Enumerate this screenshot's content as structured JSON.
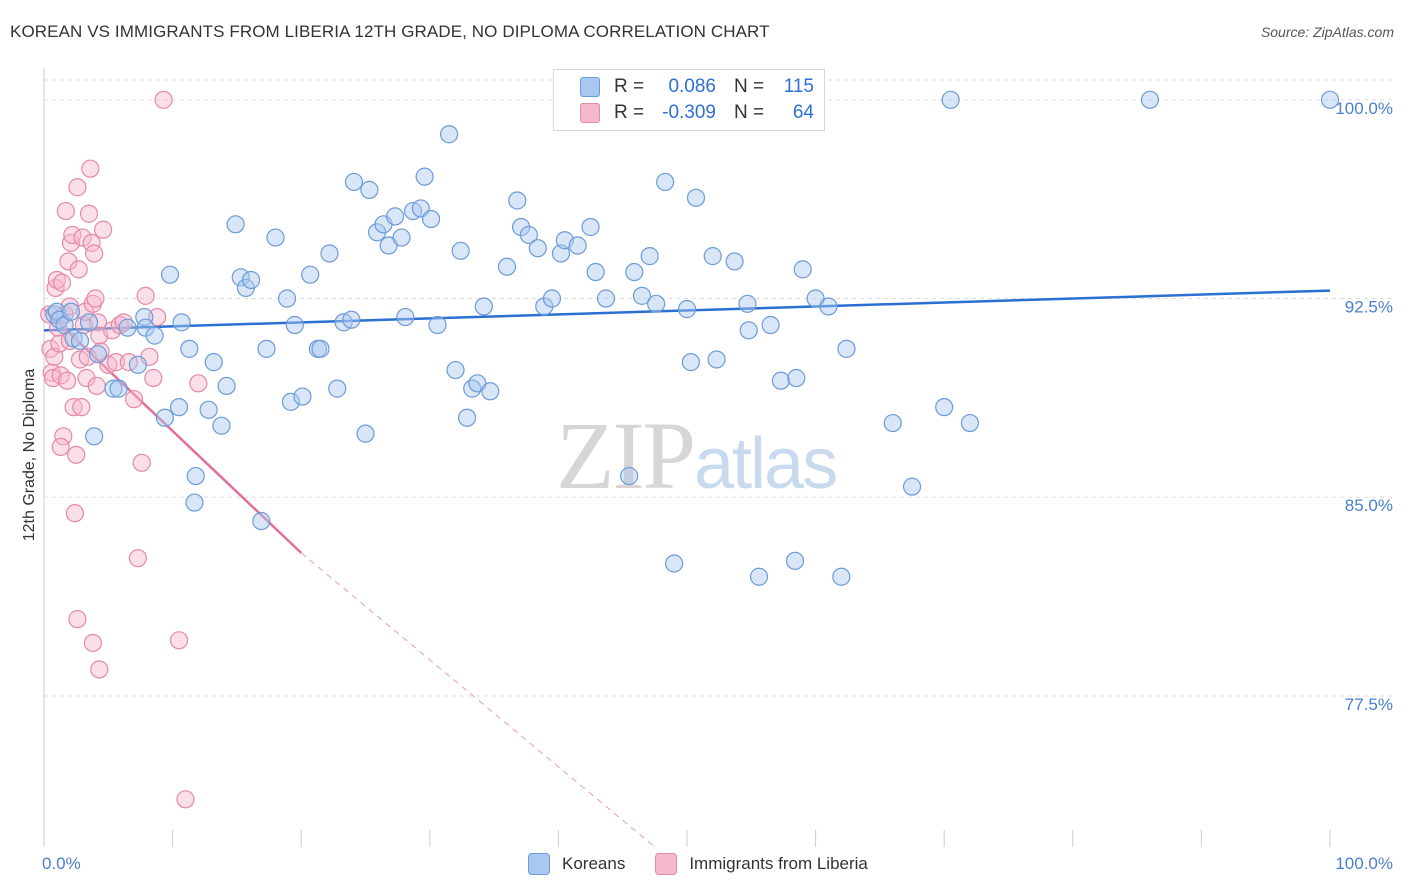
{
  "title": "KOREAN VS IMMIGRANTS FROM LIBERIA 12TH GRADE, NO DIPLOMA CORRELATION CHART",
  "source": "Source: ZipAtlas.com",
  "watermark": {
    "zip": "ZIP",
    "atlas": "atlas"
  },
  "legend": {
    "koreans": {
      "r_label": "R =",
      "r_value": "0.086",
      "n_label": "N =",
      "n_value": "115"
    },
    "liberia": {
      "r_label": "R =",
      "r_value": "-0.309",
      "n_label": "N =",
      "n_value": "64"
    }
  },
  "bottom_legend": {
    "koreans": "Koreans",
    "liberia": "Immigrants from Liberia"
  },
  "colors": {
    "koreans_fill": "#a9c8f0",
    "koreans_stroke": "#6c9bd9",
    "koreans_line": "#2a6fd1",
    "liberia_fill": "#f6b8cd",
    "liberia_stroke": "#e688a8",
    "liberia_line": "#e0709a",
    "grid": "#dddddd",
    "tick_text": "#4a7fd0"
  },
  "chart_data": {
    "type": "scatter",
    "title": "KOREAN VS IMMIGRANTS FROM LIBERIA 12TH GRADE, NO DIPLOMA CORRELATION CHART",
    "xlabel": "",
    "ylabel": "12th Grade, No Diploma",
    "xlim": [
      0,
      100
    ],
    "ylim": [
      71.8,
      101.2
    ],
    "x_ticks": [
      "0.0%",
      "100.0%"
    ],
    "y_ticks": [
      {
        "value": 100.0,
        "label": "100.0%"
      },
      {
        "value": 92.5,
        "label": "92.5%"
      },
      {
        "value": 85.0,
        "label": "85.0%"
      },
      {
        "value": 77.5,
        "label": "77.5%"
      }
    ],
    "grid": true,
    "legend_position": "top-center",
    "series": [
      {
        "name": "Koreans",
        "trend": {
          "x": [
            0,
            100
          ],
          "y": [
            91.3,
            92.8
          ]
        },
        "points": [
          [
            0.8,
            91.9
          ],
          [
            1.0,
            92.0
          ],
          [
            1.2,
            91.7
          ],
          [
            1.6,
            91.5
          ],
          [
            2.1,
            92.0
          ],
          [
            2.3,
            91.0
          ],
          [
            2.8,
            90.9
          ],
          [
            3.5,
            91.6
          ],
          [
            3.9,
            87.3
          ],
          [
            4.2,
            90.4
          ],
          [
            5.4,
            89.1
          ],
          [
            5.8,
            89.1
          ],
          [
            6.5,
            91.4
          ],
          [
            7.3,
            90.0
          ],
          [
            7.8,
            91.8
          ],
          [
            7.9,
            91.4
          ],
          [
            8.6,
            91.1
          ],
          [
            9.4,
            88.0
          ],
          [
            9.8,
            93.4
          ],
          [
            10.5,
            88.4
          ],
          [
            10.7,
            91.6
          ],
          [
            11.3,
            90.6
          ],
          [
            11.7,
            84.8
          ],
          [
            11.8,
            85.8
          ],
          [
            12.8,
            88.3
          ],
          [
            13.2,
            90.1
          ],
          [
            13.8,
            87.7
          ],
          [
            14.2,
            89.2
          ],
          [
            14.9,
            95.3
          ],
          [
            15.3,
            93.3
          ],
          [
            15.7,
            92.9
          ],
          [
            16.1,
            93.2
          ],
          [
            16.9,
            84.1
          ],
          [
            17.3,
            90.6
          ],
          [
            18.0,
            94.8
          ],
          [
            18.9,
            92.5
          ],
          [
            19.2,
            88.6
          ],
          [
            19.5,
            91.5
          ],
          [
            20.1,
            88.8
          ],
          [
            20.7,
            93.4
          ],
          [
            21.3,
            90.6
          ],
          [
            21.5,
            90.6
          ],
          [
            22.2,
            94.2
          ],
          [
            22.8,
            89.1
          ],
          [
            23.3,
            91.6
          ],
          [
            23.9,
            91.7
          ],
          [
            24.1,
            96.9
          ],
          [
            25.0,
            87.4
          ],
          [
            25.3,
            96.6
          ],
          [
            25.9,
            95.0
          ],
          [
            26.4,
            95.3
          ],
          [
            26.8,
            94.5
          ],
          [
            27.3,
            95.6
          ],
          [
            27.8,
            94.8
          ],
          [
            28.1,
            91.8
          ],
          [
            28.7,
            95.8
          ],
          [
            29.3,
            95.9
          ],
          [
            29.6,
            97.1
          ],
          [
            30.1,
            95.5
          ],
          [
            30.6,
            91.5
          ],
          [
            31.5,
            98.7
          ],
          [
            32.0,
            89.8
          ],
          [
            32.4,
            94.3
          ],
          [
            32.9,
            88.0
          ],
          [
            33.3,
            89.1
          ],
          [
            33.7,
            89.3
          ],
          [
            34.2,
            92.2
          ],
          [
            34.7,
            89.0
          ],
          [
            36.0,
            93.7
          ],
          [
            36.8,
            96.2
          ],
          [
            37.1,
            95.2
          ],
          [
            37.7,
            94.9
          ],
          [
            38.4,
            94.4
          ],
          [
            38.9,
            92.2
          ],
          [
            39.5,
            92.5
          ],
          [
            40.2,
            94.2
          ],
          [
            40.5,
            94.7
          ],
          [
            41.0,
            100.0
          ],
          [
            41.5,
            94.5
          ],
          [
            42.5,
            95.2
          ],
          [
            42.9,
            93.5
          ],
          [
            43.7,
            92.5
          ],
          [
            45.5,
            85.8
          ],
          [
            45.9,
            93.5
          ],
          [
            46.5,
            92.6
          ],
          [
            47.1,
            94.1
          ],
          [
            47.6,
            92.3
          ],
          [
            48.3,
            96.9
          ],
          [
            49.0,
            82.5
          ],
          [
            50.0,
            92.1
          ],
          [
            50.3,
            90.1
          ],
          [
            50.7,
            96.3
          ],
          [
            52.0,
            94.1
          ],
          [
            52.3,
            90.2
          ],
          [
            53.7,
            93.9
          ],
          [
            54.7,
            92.3
          ],
          [
            54.8,
            91.3
          ],
          [
            55.6,
            82.0
          ],
          [
            56.5,
            91.5
          ],
          [
            57.3,
            89.4
          ],
          [
            58.4,
            82.6
          ],
          [
            58.5,
            89.5
          ],
          [
            59.0,
            93.6
          ],
          [
            60.0,
            92.5
          ],
          [
            61.0,
            92.2
          ],
          [
            62.0,
            82.0
          ],
          [
            62.4,
            90.6
          ],
          [
            66.0,
            87.8
          ],
          [
            67.5,
            85.4
          ],
          [
            70.0,
            88.4
          ],
          [
            70.5,
            100.0
          ],
          [
            72.0,
            87.8
          ],
          [
            86.0,
            100.0
          ],
          [
            100.0,
            100.0
          ]
        ]
      },
      {
        "name": "Immigrants from Liberia",
        "trend": {
          "x": [
            0,
            20.0
          ],
          "y": [
            92.1,
            82.9
          ]
        },
        "trend_extension": {
          "x": [
            20.0,
            47.5
          ],
          "y": [
            82.9,
            71.8
          ]
        },
        "points": [
          [
            0.4,
            91.9
          ],
          [
            0.5,
            90.6
          ],
          [
            0.6,
            89.7
          ],
          [
            0.7,
            89.5
          ],
          [
            0.8,
            90.3
          ],
          [
            0.9,
            92.9
          ],
          [
            1.0,
            93.2
          ],
          [
            1.1,
            91.4
          ],
          [
            1.2,
            90.8
          ],
          [
            1.3,
            89.6
          ],
          [
            1.4,
            93.1
          ],
          [
            1.5,
            87.3
          ],
          [
            1.6,
            91.9
          ],
          [
            1.7,
            95.8
          ],
          [
            1.8,
            89.4
          ],
          [
            1.9,
            93.9
          ],
          [
            2.0,
            92.2
          ],
          [
            2.1,
            94.6
          ],
          [
            2.2,
            94.9
          ],
          [
            2.3,
            88.4
          ],
          [
            2.4,
            84.4
          ],
          [
            2.5,
            86.6
          ],
          [
            2.6,
            96.7
          ],
          [
            2.7,
            93.6
          ],
          [
            2.8,
            90.2
          ],
          [
            2.9,
            88.4
          ],
          [
            3.0,
            94.8
          ],
          [
            3.1,
            91.5
          ],
          [
            3.2,
            92.0
          ],
          [
            3.3,
            89.5
          ],
          [
            3.4,
            90.3
          ],
          [
            3.5,
            95.7
          ],
          [
            3.6,
            97.4
          ],
          [
            3.7,
            94.6
          ],
          [
            3.8,
            92.3
          ],
          [
            3.9,
            94.2
          ],
          [
            4.0,
            92.5
          ],
          [
            4.1,
            89.2
          ],
          [
            4.2,
            91.6
          ],
          [
            4.3,
            91.1
          ],
          [
            4.4,
            90.5
          ],
          [
            4.6,
            95.1
          ],
          [
            5.0,
            90.0
          ],
          [
            5.3,
            91.3
          ],
          [
            5.6,
            90.1
          ],
          [
            5.9,
            91.5
          ],
          [
            6.2,
            91.6
          ],
          [
            6.6,
            90.1
          ],
          [
            7.0,
            88.7
          ],
          [
            7.3,
            82.7
          ],
          [
            7.6,
            86.3
          ],
          [
            7.9,
            92.6
          ],
          [
            8.2,
            90.3
          ],
          [
            8.5,
            89.5
          ],
          [
            8.8,
            91.8
          ],
          [
            9.3,
            100.0
          ],
          [
            10.5,
            79.6
          ],
          [
            11.0,
            73.6
          ],
          [
            12.0,
            89.3
          ],
          [
            2.6,
            80.4
          ],
          [
            3.8,
            79.5
          ],
          [
            4.3,
            78.5
          ],
          [
            1.3,
            86.9
          ],
          [
            2.0,
            90.9
          ]
        ]
      }
    ]
  }
}
